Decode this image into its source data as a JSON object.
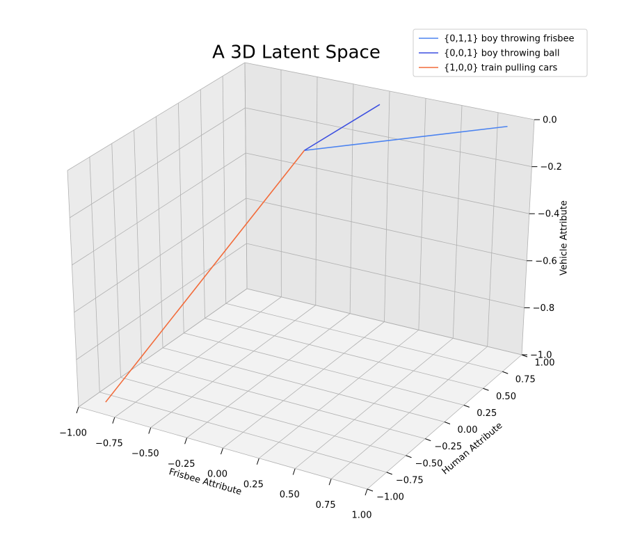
{
  "chart_data": {
    "type": "line3d",
    "title": "A 3D Latent Space",
    "xlabel": "Frisbee Attribute",
    "ylabel": "Human Attribute",
    "zlabel": "Vehicle Attribute",
    "series": [
      {
        "name": "{0,1,1} boy throwing frisbee",
        "color": "#4b83f0",
        "x": [
          0,
          0.9
        ],
        "y": [
          0,
          0.85
        ],
        "z": [
          0,
          0
        ]
      },
      {
        "name": "{0,0,1} boy throwing ball",
        "color": "#3c4fe0",
        "x": [
          0,
          0.05
        ],
        "y": [
          0,
          0.8
        ],
        "z": [
          0,
          0
        ]
      },
      {
        "name": "{1,0,0} train pulling cars",
        "color": "#f26b3a",
        "x": [
          0,
          -0.9
        ],
        "y": [
          0,
          -0.85
        ],
        "z": [
          0,
          -1
        ]
      }
    ],
    "xlim": [
      -1,
      1
    ],
    "ylim": [
      -1,
      1
    ],
    "zlim": [
      -1,
      0
    ],
    "xticks": [
      {
        "value": -1,
        "label": "−1.00"
      },
      {
        "value": -0.75,
        "label": "−0.75"
      },
      {
        "value": -0.5,
        "label": "−0.50"
      },
      {
        "value": -0.25,
        "label": "−0.25"
      },
      {
        "value": 0,
        "label": "0.00"
      },
      {
        "value": 0.25,
        "label": "0.25"
      },
      {
        "value": 0.5,
        "label": "0.50"
      },
      {
        "value": 0.75,
        "label": "0.75"
      },
      {
        "value": 1,
        "label": "1.00"
      }
    ],
    "yticks": [
      {
        "value": -1,
        "label": "−1.00"
      },
      {
        "value": -0.75,
        "label": "−0.75"
      },
      {
        "value": -0.5,
        "label": "−0.50"
      },
      {
        "value": -0.25,
        "label": "−0.25"
      },
      {
        "value": 0,
        "label": "0.00"
      },
      {
        "value": 0.25,
        "label": "0.25"
      },
      {
        "value": 0.5,
        "label": "0.50"
      },
      {
        "value": 0.75,
        "label": "0.75"
      },
      {
        "value": 1,
        "label": "1.00"
      }
    ],
    "zticks": [
      {
        "value": -1,
        "label": "−1.0"
      },
      {
        "value": -0.8,
        "label": "−0.8"
      },
      {
        "value": -0.6,
        "label": "−0.6"
      },
      {
        "value": -0.4,
        "label": "−0.4"
      },
      {
        "value": -0.2,
        "label": "−0.2"
      },
      {
        "value": 0,
        "label": "0.0"
      }
    ],
    "grid": true,
    "legend": "upper right"
  }
}
